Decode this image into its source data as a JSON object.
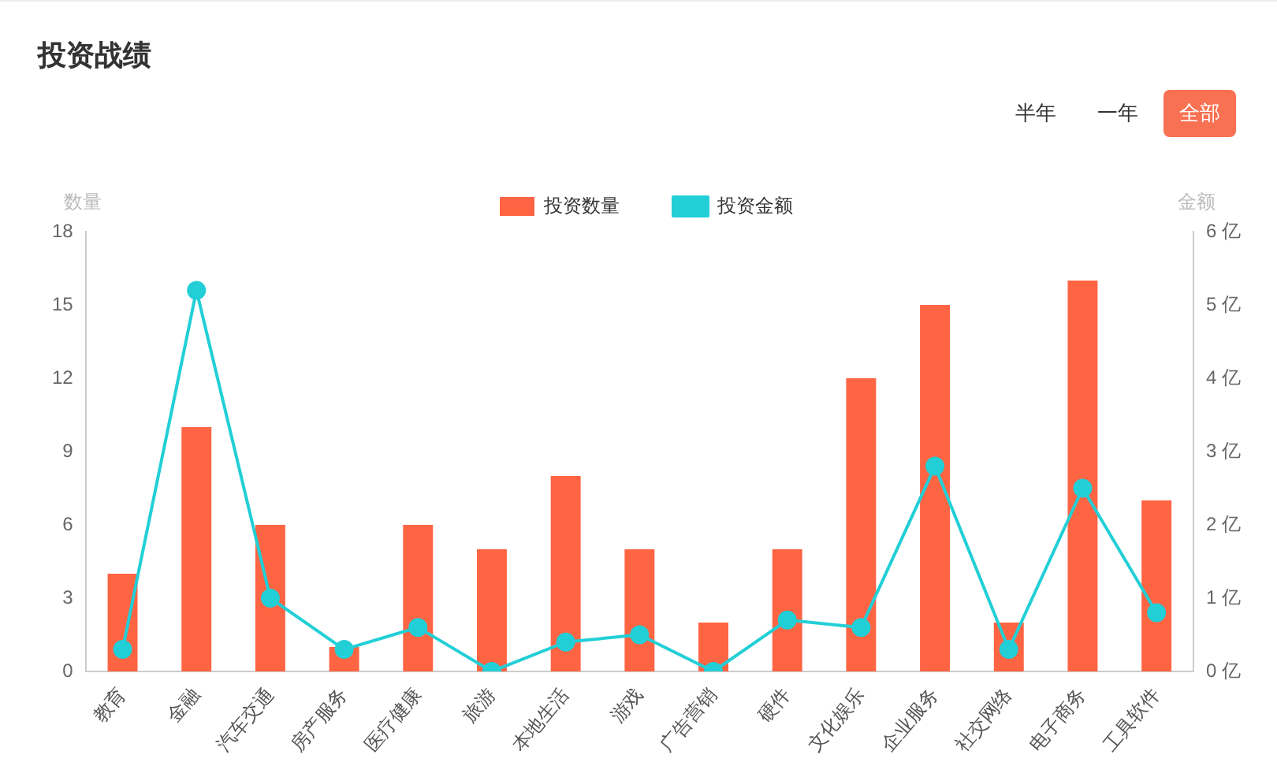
{
  "chart_data": {
    "type": "bar",
    "title": "投资战绩",
    "ylabel": "数量",
    "y2label": "金额",
    "annotations": [
      "半年",
      "一年",
      "全部"
    ],
    "categories": [
      "教育",
      "金融",
      "汽车交通",
      "房产服务",
      "医疗健康",
      "旅游",
      "本地生活",
      "游戏",
      "广告营销",
      "硬件",
      "文化娱乐",
      "企业服务",
      "社交网络",
      "电子商务",
      "工具软件"
    ],
    "series": [
      {
        "name": "投资数量",
        "color": "#ff6443",
        "values": [
          4,
          10,
          6,
          1,
          6,
          5,
          8,
          5,
          2,
          5,
          12,
          15,
          2,
          16,
          7
        ]
      },
      {
        "name": "投资金额",
        "type": "line",
        "axis": "y2",
        "color": "#22cfd6",
        "values": [
          0.3,
          5.2,
          1.0,
          0.3,
          0.6,
          0,
          0.4,
          0.5,
          0,
          0.7,
          0.6,
          2.8,
          0.3,
          2.5,
          0.8
        ]
      }
    ],
    "ylim": [
      0,
      18
    ],
    "yticks": [
      0,
      3,
      6,
      9,
      12,
      15,
      18
    ],
    "y2lim": [
      0,
      6
    ],
    "y2ticks": [
      {
        "value": 0,
        "label": "0 亿"
      },
      {
        "value": 1,
        "label": "1 亿"
      },
      {
        "value": 2,
        "label": "2 亿"
      },
      {
        "value": 3,
        "label": "3 亿"
      },
      {
        "value": 4,
        "label": "4 亿"
      },
      {
        "value": 5,
        "label": "5 亿"
      },
      {
        "value": 6,
        "label": "6 亿"
      }
    ],
    "legend": "top",
    "grid": false,
    "marker": "circle"
  }
}
